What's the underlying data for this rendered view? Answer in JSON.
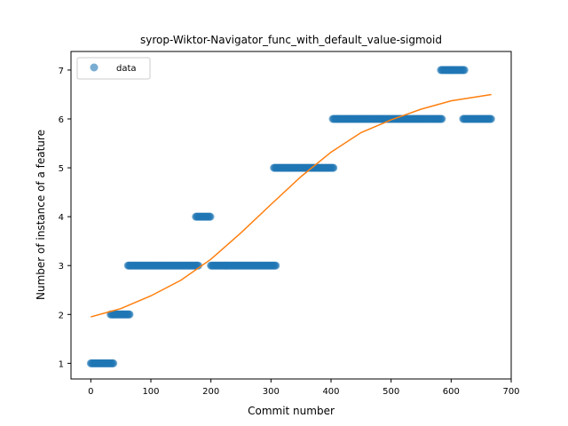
{
  "chart_data": {
    "type": "scatter",
    "title": "syrop-Wiktor-Navigator_func_with_default_value-sigmoid",
    "xlabel": "Commit number",
    "ylabel": "Number of instance of a feature",
    "xlim": [
      -33,
      700
    ],
    "ylim": [
      0.68,
      7.38
    ],
    "xticks": [
      0,
      100,
      200,
      300,
      400,
      500,
      600,
      700
    ],
    "yticks": [
      1,
      2,
      3,
      4,
      5,
      6,
      7
    ],
    "grid": false,
    "legend": {
      "position": "top-left",
      "entries": [
        "data"
      ]
    },
    "colors": {
      "data": "#1f77b4",
      "fit": "#ff7f0e"
    },
    "series": [
      {
        "name": "data",
        "kind": "scatter-runs",
        "runs": [
          {
            "x_start": 0,
            "x_end": 38,
            "y": 1
          },
          {
            "x_start": 33,
            "x_end": 65,
            "y": 2
          },
          {
            "x_start": 62,
            "x_end": 180,
            "y": 3
          },
          {
            "x_start": 175,
            "x_end": 200,
            "y": 4
          },
          {
            "x_start": 200,
            "x_end": 308,
            "y": 3
          },
          {
            "x_start": 305,
            "x_end": 405,
            "y": 5
          },
          {
            "x_start": 403,
            "x_end": 585,
            "y": 6
          },
          {
            "x_start": 583,
            "x_end": 623,
            "y": 7
          },
          {
            "x_start": 620,
            "x_end": 667,
            "y": 6
          }
        ]
      },
      {
        "name": "",
        "kind": "line",
        "points": [
          [
            0,
            1.95
          ],
          [
            50,
            2.12
          ],
          [
            100,
            2.38
          ],
          [
            150,
            2.7
          ],
          [
            200,
            3.13
          ],
          [
            250,
            3.67
          ],
          [
            300,
            4.25
          ],
          [
            350,
            4.82
          ],
          [
            400,
            5.32
          ],
          [
            450,
            5.72
          ],
          [
            500,
            5.98
          ],
          [
            550,
            6.2
          ],
          [
            600,
            6.37
          ],
          [
            667,
            6.5
          ]
        ]
      }
    ]
  }
}
